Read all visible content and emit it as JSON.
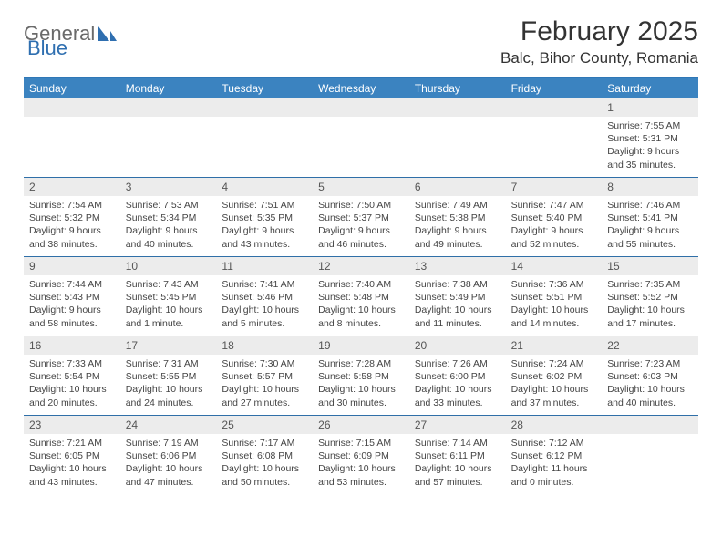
{
  "logo": {
    "text1": "General",
    "text2": "Blue"
  },
  "title": "February 2025",
  "location": "Balc, Bihor County, Romania",
  "colors": {
    "header_bar": "#3b83c0",
    "header_border": "#2f77b6",
    "row_divider": "#2f6fa8",
    "daynum_bg": "#ececec",
    "text": "#333333"
  },
  "weekdays": [
    "Sunday",
    "Monday",
    "Tuesday",
    "Wednesday",
    "Thursday",
    "Friday",
    "Saturday"
  ],
  "weeks": [
    [
      null,
      null,
      null,
      null,
      null,
      null,
      {
        "n": "1",
        "sunrise": "Sunrise: 7:55 AM",
        "sunset": "Sunset: 5:31 PM",
        "daylight": "Daylight: 9 hours and 35 minutes."
      }
    ],
    [
      {
        "n": "2",
        "sunrise": "Sunrise: 7:54 AM",
        "sunset": "Sunset: 5:32 PM",
        "daylight": "Daylight: 9 hours and 38 minutes."
      },
      {
        "n": "3",
        "sunrise": "Sunrise: 7:53 AM",
        "sunset": "Sunset: 5:34 PM",
        "daylight": "Daylight: 9 hours and 40 minutes."
      },
      {
        "n": "4",
        "sunrise": "Sunrise: 7:51 AM",
        "sunset": "Sunset: 5:35 PM",
        "daylight": "Daylight: 9 hours and 43 minutes."
      },
      {
        "n": "5",
        "sunrise": "Sunrise: 7:50 AM",
        "sunset": "Sunset: 5:37 PM",
        "daylight": "Daylight: 9 hours and 46 minutes."
      },
      {
        "n": "6",
        "sunrise": "Sunrise: 7:49 AM",
        "sunset": "Sunset: 5:38 PM",
        "daylight": "Daylight: 9 hours and 49 minutes."
      },
      {
        "n": "7",
        "sunrise": "Sunrise: 7:47 AM",
        "sunset": "Sunset: 5:40 PM",
        "daylight": "Daylight: 9 hours and 52 minutes."
      },
      {
        "n": "8",
        "sunrise": "Sunrise: 7:46 AM",
        "sunset": "Sunset: 5:41 PM",
        "daylight": "Daylight: 9 hours and 55 minutes."
      }
    ],
    [
      {
        "n": "9",
        "sunrise": "Sunrise: 7:44 AM",
        "sunset": "Sunset: 5:43 PM",
        "daylight": "Daylight: 9 hours and 58 minutes."
      },
      {
        "n": "10",
        "sunrise": "Sunrise: 7:43 AM",
        "sunset": "Sunset: 5:45 PM",
        "daylight": "Daylight: 10 hours and 1 minute."
      },
      {
        "n": "11",
        "sunrise": "Sunrise: 7:41 AM",
        "sunset": "Sunset: 5:46 PM",
        "daylight": "Daylight: 10 hours and 5 minutes."
      },
      {
        "n": "12",
        "sunrise": "Sunrise: 7:40 AM",
        "sunset": "Sunset: 5:48 PM",
        "daylight": "Daylight: 10 hours and 8 minutes."
      },
      {
        "n": "13",
        "sunrise": "Sunrise: 7:38 AM",
        "sunset": "Sunset: 5:49 PM",
        "daylight": "Daylight: 10 hours and 11 minutes."
      },
      {
        "n": "14",
        "sunrise": "Sunrise: 7:36 AM",
        "sunset": "Sunset: 5:51 PM",
        "daylight": "Daylight: 10 hours and 14 minutes."
      },
      {
        "n": "15",
        "sunrise": "Sunrise: 7:35 AM",
        "sunset": "Sunset: 5:52 PM",
        "daylight": "Daylight: 10 hours and 17 minutes."
      }
    ],
    [
      {
        "n": "16",
        "sunrise": "Sunrise: 7:33 AM",
        "sunset": "Sunset: 5:54 PM",
        "daylight": "Daylight: 10 hours and 20 minutes."
      },
      {
        "n": "17",
        "sunrise": "Sunrise: 7:31 AM",
        "sunset": "Sunset: 5:55 PM",
        "daylight": "Daylight: 10 hours and 24 minutes."
      },
      {
        "n": "18",
        "sunrise": "Sunrise: 7:30 AM",
        "sunset": "Sunset: 5:57 PM",
        "daylight": "Daylight: 10 hours and 27 minutes."
      },
      {
        "n": "19",
        "sunrise": "Sunrise: 7:28 AM",
        "sunset": "Sunset: 5:58 PM",
        "daylight": "Daylight: 10 hours and 30 minutes."
      },
      {
        "n": "20",
        "sunrise": "Sunrise: 7:26 AM",
        "sunset": "Sunset: 6:00 PM",
        "daylight": "Daylight: 10 hours and 33 minutes."
      },
      {
        "n": "21",
        "sunrise": "Sunrise: 7:24 AM",
        "sunset": "Sunset: 6:02 PM",
        "daylight": "Daylight: 10 hours and 37 minutes."
      },
      {
        "n": "22",
        "sunrise": "Sunrise: 7:23 AM",
        "sunset": "Sunset: 6:03 PM",
        "daylight": "Daylight: 10 hours and 40 minutes."
      }
    ],
    [
      {
        "n": "23",
        "sunrise": "Sunrise: 7:21 AM",
        "sunset": "Sunset: 6:05 PM",
        "daylight": "Daylight: 10 hours and 43 minutes."
      },
      {
        "n": "24",
        "sunrise": "Sunrise: 7:19 AM",
        "sunset": "Sunset: 6:06 PM",
        "daylight": "Daylight: 10 hours and 47 minutes."
      },
      {
        "n": "25",
        "sunrise": "Sunrise: 7:17 AM",
        "sunset": "Sunset: 6:08 PM",
        "daylight": "Daylight: 10 hours and 50 minutes."
      },
      {
        "n": "26",
        "sunrise": "Sunrise: 7:15 AM",
        "sunset": "Sunset: 6:09 PM",
        "daylight": "Daylight: 10 hours and 53 minutes."
      },
      {
        "n": "27",
        "sunrise": "Sunrise: 7:14 AM",
        "sunset": "Sunset: 6:11 PM",
        "daylight": "Daylight: 10 hours and 57 minutes."
      },
      {
        "n": "28",
        "sunrise": "Sunrise: 7:12 AM",
        "sunset": "Sunset: 6:12 PM",
        "daylight": "Daylight: 11 hours and 0 minutes."
      },
      null
    ]
  ]
}
